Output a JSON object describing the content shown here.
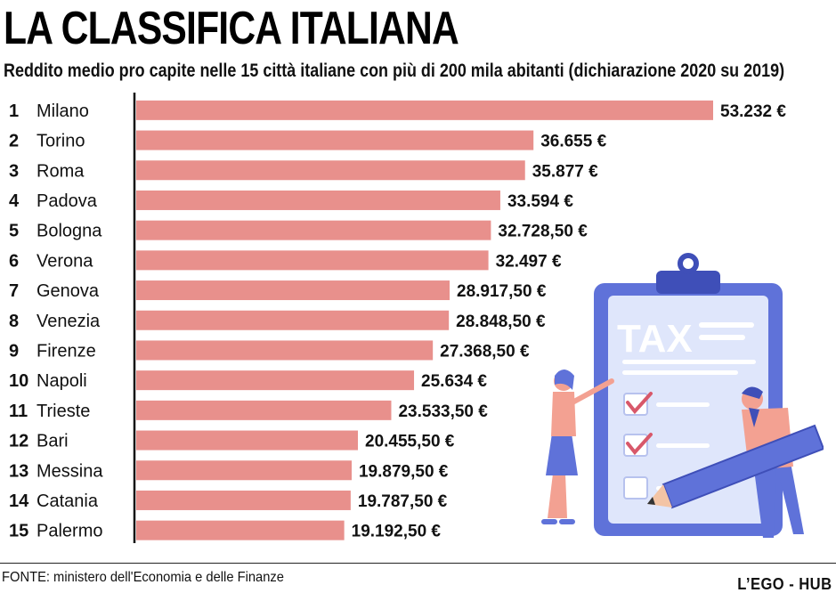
{
  "header": {
    "title": "LA CLASSIFICA ITALIANA",
    "subtitle": "Reddito medio pro capite nelle 15 città italiane con più di 200 mila abitanti (dichiarazione 2020 su 2019)"
  },
  "chart_data": {
    "type": "bar",
    "orientation": "horizontal",
    "title": "LA CLASSIFICA ITALIANA",
    "subtitle": "Reddito medio pro capite nelle 15 città italiane con più di 200 mila abitanti (dichiarazione 2020 su 2019)",
    "ranks": [
      "1",
      "2",
      "3",
      "4",
      "5",
      "6",
      "7",
      "8",
      "9",
      "10",
      "11",
      "12",
      "13",
      "14",
      "15"
    ],
    "categories": [
      "Milano",
      "Torino",
      "Roma",
      "Padova",
      "Bologna",
      "Verona",
      "Genova",
      "Venezia",
      "Firenze",
      "Napoli",
      "Trieste",
      "Bari",
      "Messina",
      "Catania",
      "Palermo"
    ],
    "values": [
      53232,
      36655,
      35877,
      33594,
      32728.5,
      32497,
      28917.5,
      28848.5,
      27368.5,
      25634,
      23533.5,
      20455.5,
      19879.5,
      19787.5,
      19192.5
    ],
    "value_labels": [
      "53.232 €",
      "36.655 €",
      "35.877 €",
      "33.594 €",
      "32.728,50 €",
      "32.497 €",
      "28.917,50 €",
      "28.848,50 €",
      "27.368,50 €",
      "25.634 €",
      "23.533,50 €",
      "20.455,50 €",
      "19.879,50 €",
      "19.787,50 €",
      "19.192,50 €"
    ],
    "xlim": [
      0,
      53232
    ],
    "grid": false,
    "legend": "none",
    "bar_color": "#e8908c"
  },
  "illustration": {
    "board_text": "TAX"
  },
  "footer": {
    "source": "FONTE: ministero dell'Economia e delle Finanze",
    "brand": "L’EGO - HUB"
  },
  "colors": {
    "bar": "#e8908c",
    "clipboard_frame": "#5f72d9",
    "clipboard_paper": "#dfe6fb",
    "check": "#d8586a",
    "skin": "#f3a192"
  }
}
